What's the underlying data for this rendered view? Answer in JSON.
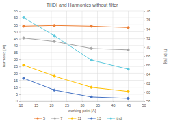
{
  "chart_data": {
    "type": "line",
    "title": "THDI and Harmonics without filter",
    "x_label": "working point [A]",
    "y_label": "harmonic [%]",
    "y2_label": "THDI [%]",
    "x": [
      11,
      21,
      33,
      45
    ],
    "series": [
      {
        "name": "5",
        "color": "#ed7d31",
        "marker": "circle",
        "values": [
          54,
          54.5,
          54,
          53
        ]
      },
      {
        "name": "7",
        "color": "#a5a5a5",
        "marker": "circle",
        "values": [
          45.5,
          43,
          38,
          37
        ]
      },
      {
        "name": "11",
        "color": "#ffc000",
        "marker": "circle",
        "values": [
          26,
          18,
          10,
          7
        ]
      },
      {
        "name": "13",
        "color": "#4472c4",
        "marker": "circle",
        "values": [
          16.5,
          8,
          3,
          2
        ]
      },
      {
        "name": "thdi",
        "color": "#5bc8dc",
        "marker": "circle",
        "axis": "y2",
        "values": [
          76.5,
          72.5,
          67.1,
          65.1
        ]
      }
    ],
    "xlim": [
      10,
      50
    ],
    "xticks": [
      10,
      15,
      20,
      25,
      30,
      35,
      40,
      45,
      50
    ],
    "ylim": [
      0,
      65
    ],
    "yticks": [
      0,
      5,
      10,
      15,
      20,
      25,
      30,
      35,
      40,
      45,
      50,
      55,
      60,
      65
    ],
    "y2lim": [
      58,
      78
    ],
    "y2ticks": [
      58,
      60,
      62,
      64,
      66,
      68,
      70,
      72,
      74,
      76,
      78
    ],
    "grid": true,
    "legend": "bottom"
  }
}
